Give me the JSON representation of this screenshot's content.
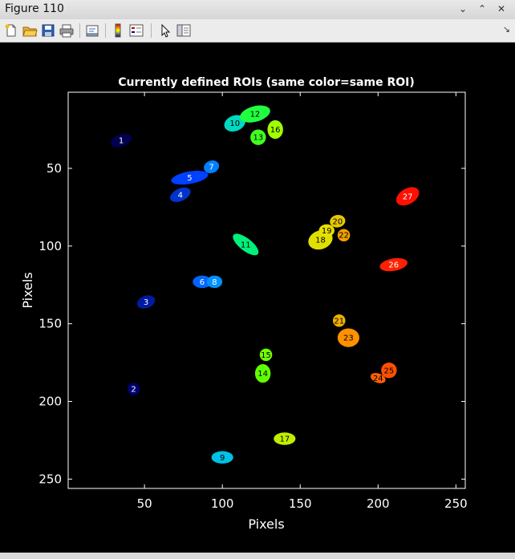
{
  "window": {
    "title": "Figure 110"
  },
  "toolbar": {
    "icons": [
      "new-figure-icon",
      "open-file-icon",
      "save-icon",
      "print-icon",
      "print-preview-icon",
      "insert-colorbar-icon",
      "insert-legend-icon",
      "select-arrow-icon",
      "property-editor-icon"
    ]
  },
  "chart_data": {
    "type": "scatter",
    "title": "Currently defined ROIs (same color=same ROI)",
    "xlabel": "Pixels",
    "ylabel": "Pixels",
    "xlim": [
      1,
      256
    ],
    "ylim": [
      256,
      1
    ],
    "y_reversed": true,
    "xticks": [
      50,
      100,
      150,
      200,
      250
    ],
    "yticks": [
      50,
      100,
      150,
      200,
      250
    ],
    "grid": false,
    "background": "#000000",
    "rois": [
      {
        "label": "1",
        "x": 35,
        "y": 32,
        "rx": 7,
        "ry": 4,
        "angle": -20,
        "color": "#00004d",
        "text": "#ffffff"
      },
      {
        "label": "2",
        "x": 43,
        "y": 192,
        "rx": 4,
        "ry": 4,
        "angle": 0,
        "color": "#00006e",
        "text": "#ffffff"
      },
      {
        "label": "3",
        "x": 51,
        "y": 136,
        "rx": 6,
        "ry": 4,
        "angle": -20,
        "color": "#001aa0",
        "text": "#ffffff"
      },
      {
        "label": "4",
        "x": 73,
        "y": 67,
        "rx": 7,
        "ry": 4,
        "angle": -25,
        "color": "#0033cc",
        "text": "#ffffff"
      },
      {
        "label": "5",
        "x": 79,
        "y": 56,
        "rx": 12,
        "ry": 4,
        "angle": -10,
        "color": "#0040ff",
        "text": "#ffffff"
      },
      {
        "label": "6",
        "x": 87,
        "y": 123,
        "rx": 6,
        "ry": 4,
        "angle": 0,
        "color": "#0066ff",
        "text": "#ffffff"
      },
      {
        "label": "7",
        "x": 93,
        "y": 49,
        "rx": 5,
        "ry": 4,
        "angle": -20,
        "color": "#0080ff",
        "text": "#ffffff"
      },
      {
        "label": "8",
        "x": 95,
        "y": 123,
        "rx": 5,
        "ry": 4,
        "angle": 0,
        "color": "#0090ff",
        "text": "#ffffff"
      },
      {
        "label": "9",
        "x": 100,
        "y": 236,
        "rx": 7,
        "ry": 4,
        "angle": 0,
        "color": "#00c0e6",
        "text": "#000000"
      },
      {
        "label": "10",
        "x": 108,
        "y": 21,
        "rx": 7,
        "ry": 5,
        "angle": -20,
        "color": "#00d9c0",
        "text": "#000000"
      },
      {
        "label": "11",
        "x": 115,
        "y": 99,
        "rx": 10,
        "ry": 4,
        "angle": 38,
        "color": "#00f07a",
        "text": "#000000"
      },
      {
        "label": "12",
        "x": 121,
        "y": 15,
        "rx": 10,
        "ry": 5,
        "angle": -15,
        "color": "#20ff40",
        "text": "#000000"
      },
      {
        "label": "13",
        "x": 123,
        "y": 30,
        "rx": 5,
        "ry": 5,
        "angle": 0,
        "color": "#40ff20",
        "text": "#000000"
      },
      {
        "label": "14",
        "x": 126,
        "y": 182,
        "rx": 5,
        "ry": 6,
        "angle": 0,
        "color": "#60ff00",
        "text": "#000000"
      },
      {
        "label": "15",
        "x": 128,
        "y": 170,
        "rx": 4,
        "ry": 4,
        "angle": 0,
        "color": "#70ff00",
        "text": "#000000"
      },
      {
        "label": "16",
        "x": 134,
        "y": 25,
        "rx": 5,
        "ry": 6,
        "angle": 0,
        "color": "#a0ff00",
        "text": "#000000"
      },
      {
        "label": "17",
        "x": 140,
        "y": 224,
        "rx": 7,
        "ry": 4,
        "angle": 0,
        "color": "#c0f000",
        "text": "#000000"
      },
      {
        "label": "18",
        "x": 163,
        "y": 96,
        "rx": 8,
        "ry": 6,
        "angle": -20,
        "color": "#e0e000",
        "text": "#000000"
      },
      {
        "label": "19",
        "x": 167,
        "y": 90,
        "rx": 5,
        "ry": 4,
        "angle": 0,
        "color": "#e8e000",
        "text": "#000000"
      },
      {
        "label": "20",
        "x": 174,
        "y": 84,
        "rx": 5,
        "ry": 4,
        "angle": -10,
        "color": "#e8c800",
        "text": "#000000"
      },
      {
        "label": "21",
        "x": 175,
        "y": 148,
        "rx": 4,
        "ry": 4,
        "angle": 0,
        "color": "#f0b000",
        "text": "#000000"
      },
      {
        "label": "22",
        "x": 178,
        "y": 93,
        "rx": 4,
        "ry": 4,
        "angle": 0,
        "color": "#f0a000",
        "text": "#000000"
      },
      {
        "label": "23",
        "x": 181,
        "y": 159,
        "rx": 7,
        "ry": 6,
        "angle": 0,
        "color": "#ff9000",
        "text": "#000000"
      },
      {
        "label": "24",
        "x": 200,
        "y": 185,
        "rx": 5,
        "ry": 3,
        "angle": 20,
        "color": "#ff6000",
        "text": "#000000"
      },
      {
        "label": "25",
        "x": 207,
        "y": 180,
        "rx": 5,
        "ry": 5,
        "angle": 0,
        "color": "#ff5000",
        "text": "#000000"
      },
      {
        "label": "26",
        "x": 210,
        "y": 112,
        "rx": 9,
        "ry": 4,
        "angle": -10,
        "color": "#ff2000",
        "text": "#ffffff"
      },
      {
        "label": "27",
        "x": 219,
        "y": 68,
        "rx": 8,
        "ry": 5,
        "angle": -30,
        "color": "#ff1000",
        "text": "#ffffff"
      }
    ]
  }
}
